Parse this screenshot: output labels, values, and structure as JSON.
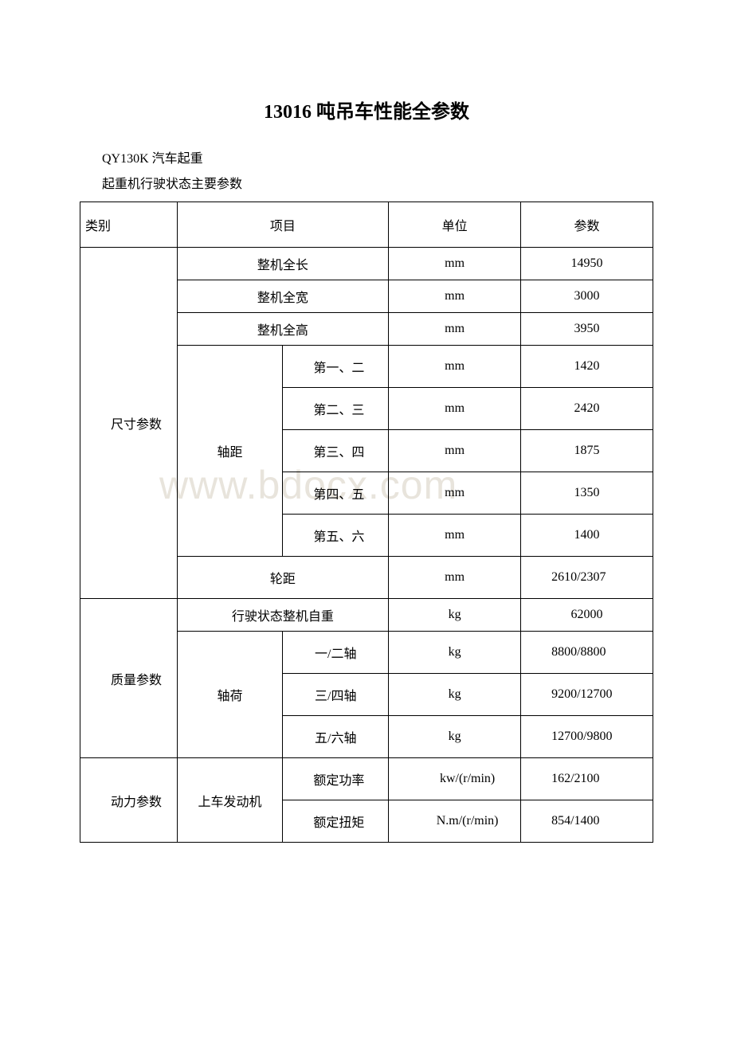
{
  "title": "13016 吨吊车性能全参数",
  "intro1": "QY130K 汽车起重",
  "intro2": "起重机行驶状态主要参数",
  "watermark": "www.bdocx.com",
  "headers": {
    "category": "类别",
    "item": "项目",
    "unit": "单位",
    "param": "参数"
  },
  "categories": {
    "size": "尺寸参数",
    "mass": "质量参数",
    "power": "动力参数"
  },
  "items": {
    "full_length": "整机全长",
    "full_width": "整机全宽",
    "full_height": "整机全高",
    "wheelbase": "轴距",
    "wb_12": "第一、二",
    "wb_23": "第二、三",
    "wb_34": "第三、四",
    "wb_45": "第四、五",
    "wb_56": "第五、六",
    "track": "轮距",
    "self_weight": "行驶状态整机自重",
    "axle_load": "轴荷",
    "axle_12": "一/二轴",
    "axle_34": "三/四轴",
    "axle_56": "五/六轴",
    "upper_engine": "上车发动机",
    "rated_power": "额定功率",
    "rated_torque": "额定扭矩"
  },
  "units": {
    "mm": "mm",
    "kg": "kg",
    "kw_rmin": "kw/(r/min)",
    "nm_rmin": "N.m/(r/min)"
  },
  "values": {
    "full_length": "14950",
    "full_width": "3000",
    "full_height": "3950",
    "wb_12": "1420",
    "wb_23": "2420",
    "wb_34": "1875",
    "wb_45": "1350",
    "wb_56": "1400",
    "track": "2610/2307",
    "self_weight": "62000",
    "axle_12": "8800/8800",
    "axle_34": "9200/12700",
    "axle_56": "12700/9800",
    "rated_power": "162/2100",
    "rated_torque": "854/1400"
  }
}
